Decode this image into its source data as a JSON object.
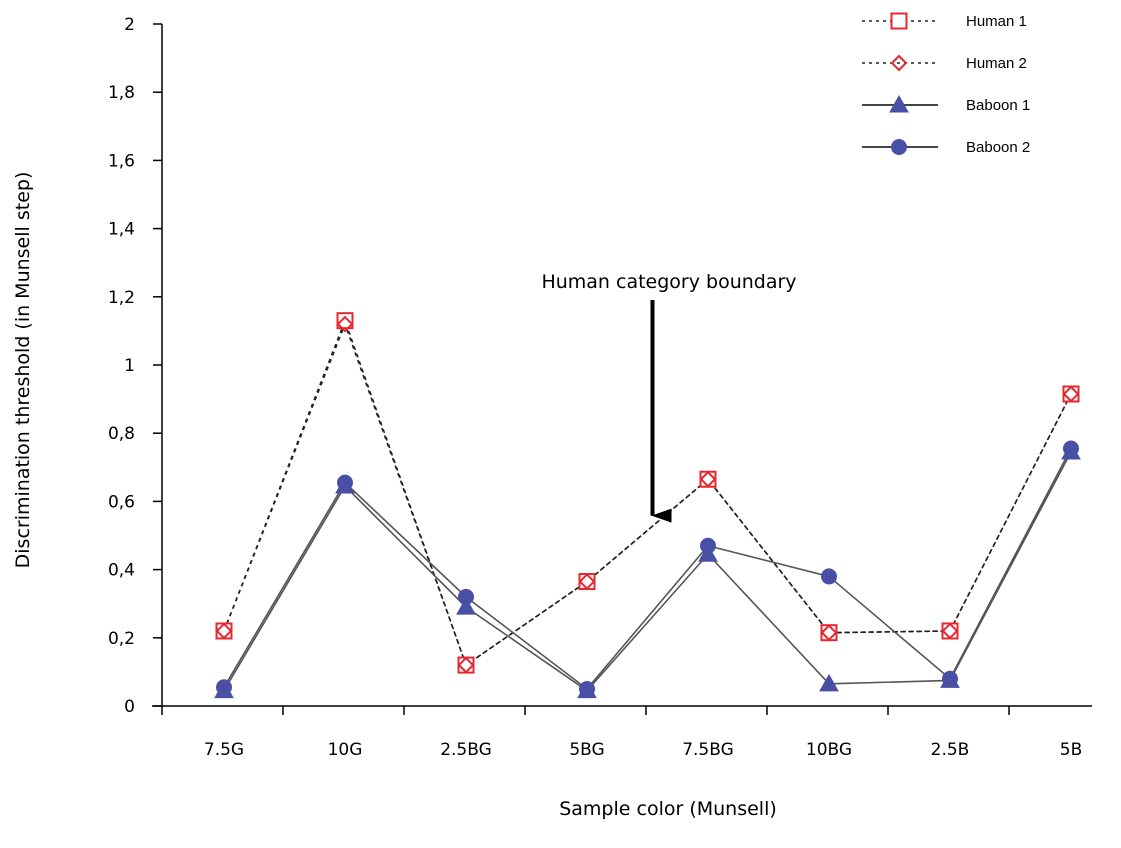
{
  "chart_data": {
    "type": "line",
    "title": "",
    "xlabel": "Sample color (Munsell)",
    "ylabel": "Discrimination threshold (in Munsell step)",
    "categories": [
      "7.5G",
      "10G",
      "2.5BG",
      "5BG",
      "7.5BG",
      "10BG",
      "2.5B",
      "5B"
    ],
    "ylim": [
      0,
      2
    ],
    "yticks": [
      0,
      0.2,
      0.4,
      0.6,
      0.8,
      1,
      1.2,
      1.4,
      1.6,
      1.8,
      2
    ],
    "ytick_labels": [
      "0",
      "0,2",
      "0,4",
      "0,6",
      "0,8",
      "1",
      "1,2",
      "1,4",
      "1,6",
      "1,8",
      "2"
    ],
    "grid": false,
    "legend_position": "top-right",
    "series": [
      {
        "name": "Human 1",
        "values": [
          0.22,
          1.13,
          0.12,
          0.365,
          0.665,
          0.215,
          0.22,
          0.915
        ],
        "color": "#e8262e",
        "marker": "square",
        "line": "dotted"
      },
      {
        "name": "Human 2",
        "values": [
          0.22,
          1.12,
          0.12,
          0.365,
          0.665,
          0.215,
          0.22,
          0.915
        ],
        "color": "#e8262e",
        "marker": "diamond",
        "line": "dotted"
      },
      {
        "name": "Baboon 1",
        "values": [
          0.045,
          0.645,
          0.29,
          0.045,
          0.445,
          0.065,
          0.075,
          0.745
        ],
        "color": "#4a4fa6",
        "marker": "triangle",
        "line": "solid"
      },
      {
        "name": "Baboon 2",
        "values": [
          0.055,
          0.655,
          0.32,
          0.05,
          0.47,
          0.38,
          0.08,
          0.755
        ],
        "color": "#4a4fa6",
        "marker": "circle",
        "line": "solid"
      }
    ],
    "annotations": [
      {
        "text": "Human category boundary",
        "arrow_target": {
          "category_between": [
            "5BG",
            "7.5BG"
          ],
          "y": 0.57
        }
      }
    ]
  }
}
